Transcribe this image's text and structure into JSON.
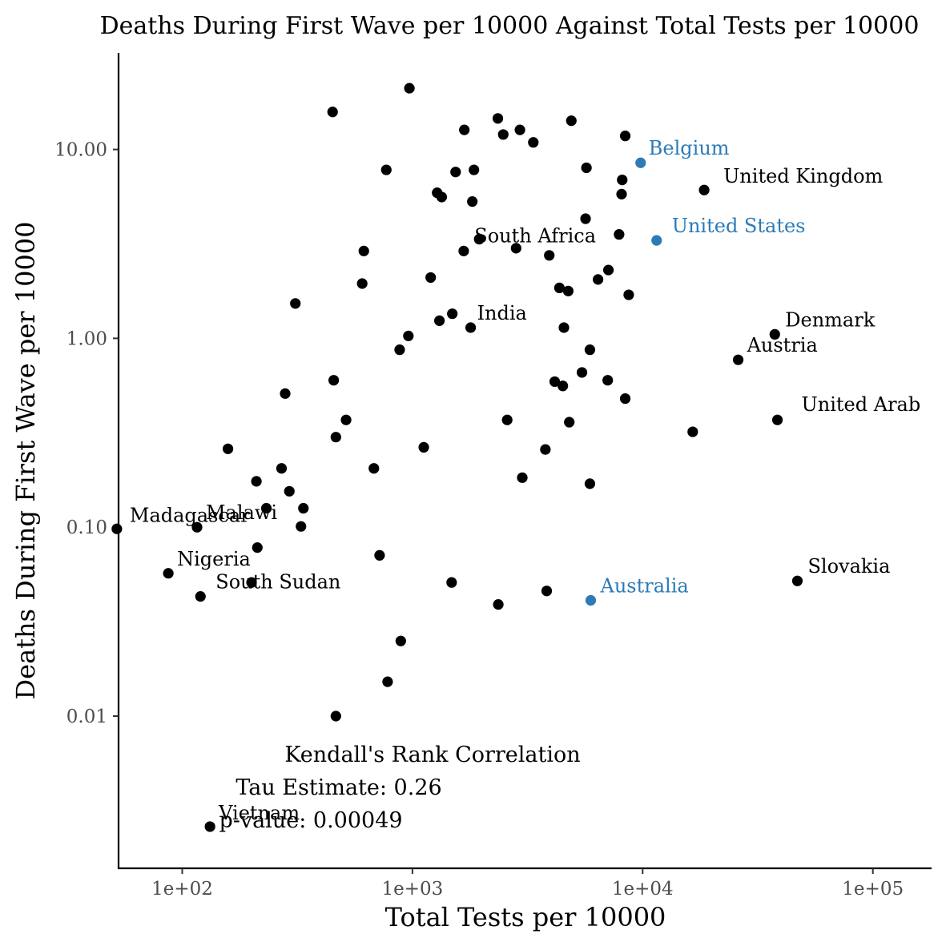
{
  "chart_data": {
    "type": "scatter",
    "title": "Deaths During First Wave per 10000 Against Total Tests per 10000",
    "xlabel": "Total Tests per 10000",
    "ylabel": "Deaths During First Wave per 10000",
    "x_scale": "log10",
    "y_scale": "log10",
    "xlim": [
      52,
      190000
    ],
    "ylim": [
      0.0018,
      30
    ],
    "x_ticks": [
      {
        "value": 100,
        "label": "1e+02"
      },
      {
        "value": 1000,
        "label": "1e+03"
      },
      {
        "value": 10000,
        "label": "1e+04"
      },
      {
        "value": 100000,
        "label": "1e+05"
      }
    ],
    "y_ticks": [
      {
        "value": 0.01,
        "label": "0.01"
      },
      {
        "value": 0.1,
        "label": "0.10"
      },
      {
        "value": 1,
        "label": "1.00"
      },
      {
        "value": 10,
        "label": "10.00"
      }
    ],
    "grid": false,
    "colors": {
      "default": "#000000",
      "highlight": "#2c7bb6",
      "tick": "#4d4d4d"
    },
    "annotations": [
      "Kendall's Rank Correlation",
      "Tau Estimate: 0.26",
      "p-value: 0.00049"
    ],
    "points": [
      {
        "x": 9800,
        "y": 8.5,
        "label": "Belgium",
        "highlight": true
      },
      {
        "x": 18500,
        "y": 6.1,
        "label": "United Kingdom"
      },
      {
        "x": 11500,
        "y": 3.3,
        "label": "United States",
        "highlight": true
      },
      {
        "x": 1950,
        "y": 3.35,
        "label": "South Africa"
      },
      {
        "x": 1790,
        "y": 1.14,
        "label": "India"
      },
      {
        "x": 37500,
        "y": 1.05,
        "label": "Denmark"
      },
      {
        "x": 26000,
        "y": 0.77,
        "label": "Austria"
      },
      {
        "x": 38500,
        "y": 0.37,
        "label": "United Arab"
      },
      {
        "x": 52,
        "y": 0.098,
        "label": "Madagascar"
      },
      {
        "x": 116,
        "y": 0.1,
        "label": "Malawi"
      },
      {
        "x": 87,
        "y": 0.057,
        "label": "Nigeria"
      },
      {
        "x": 120,
        "y": 0.043,
        "label": "South Sudan"
      },
      {
        "x": 5950,
        "y": 0.041,
        "label": "Australia",
        "highlight": true
      },
      {
        "x": 47000,
        "y": 0.052,
        "label": "Slovakia"
      },
      {
        "x": 132,
        "y": 0.0026,
        "label": "Vietnam"
      },
      {
        "x": 450,
        "y": 15.8
      },
      {
        "x": 970,
        "y": 21.1
      },
      {
        "x": 2350,
        "y": 14.6
      },
      {
        "x": 4900,
        "y": 14.2
      },
      {
        "x": 1680,
        "y": 12.7
      },
      {
        "x": 2480,
        "y": 12.0
      },
      {
        "x": 2930,
        "y": 12.7
      },
      {
        "x": 3350,
        "y": 10.9
      },
      {
        "x": 8400,
        "y": 11.8
      },
      {
        "x": 770,
        "y": 7.8
      },
      {
        "x": 1540,
        "y": 7.6
      },
      {
        "x": 1850,
        "y": 7.8
      },
      {
        "x": 5700,
        "y": 8.0
      },
      {
        "x": 8150,
        "y": 6.9
      },
      {
        "x": 1280,
        "y": 5.9
      },
      {
        "x": 1340,
        "y": 5.6
      },
      {
        "x": 1820,
        "y": 5.3
      },
      {
        "x": 8100,
        "y": 5.8
      },
      {
        "x": 5650,
        "y": 4.3
      },
      {
        "x": 7900,
        "y": 3.55
      },
      {
        "x": 615,
        "y": 2.9
      },
      {
        "x": 1670,
        "y": 2.9
      },
      {
        "x": 2820,
        "y": 3.0
      },
      {
        "x": 3930,
        "y": 2.75
      },
      {
        "x": 7100,
        "y": 2.3
      },
      {
        "x": 1200,
        "y": 2.1
      },
      {
        "x": 605,
        "y": 1.95
      },
      {
        "x": 6400,
        "y": 2.05
      },
      {
        "x": 4350,
        "y": 1.85
      },
      {
        "x": 4750,
        "y": 1.78
      },
      {
        "x": 8700,
        "y": 1.7
      },
      {
        "x": 310,
        "y": 1.53
      },
      {
        "x": 1490,
        "y": 1.35
      },
      {
        "x": 1310,
        "y": 1.24
      },
      {
        "x": 4550,
        "y": 1.14
      },
      {
        "x": 960,
        "y": 1.03
      },
      {
        "x": 880,
        "y": 0.87
      },
      {
        "x": 5900,
        "y": 0.87
      },
      {
        "x": 5450,
        "y": 0.66
      },
      {
        "x": 455,
        "y": 0.6
      },
      {
        "x": 4150,
        "y": 0.59
      },
      {
        "x": 4500,
        "y": 0.56
      },
      {
        "x": 7050,
        "y": 0.6
      },
      {
        "x": 280,
        "y": 0.51
      },
      {
        "x": 8400,
        "y": 0.48
      },
      {
        "x": 515,
        "y": 0.37
      },
      {
        "x": 2580,
        "y": 0.37
      },
      {
        "x": 4800,
        "y": 0.36
      },
      {
        "x": 16500,
        "y": 0.32
      },
      {
        "x": 465,
        "y": 0.3
      },
      {
        "x": 158,
        "y": 0.26
      },
      {
        "x": 1120,
        "y": 0.265
      },
      {
        "x": 3780,
        "y": 0.258
      },
      {
        "x": 270,
        "y": 0.205
      },
      {
        "x": 680,
        "y": 0.205
      },
      {
        "x": 210,
        "y": 0.175
      },
      {
        "x": 3000,
        "y": 0.183
      },
      {
        "x": 5900,
        "y": 0.17
      },
      {
        "x": 292,
        "y": 0.155
      },
      {
        "x": 232,
        "y": 0.126
      },
      {
        "x": 336,
        "y": 0.126
      },
      {
        "x": 328,
        "y": 0.101
      },
      {
        "x": 212,
        "y": 0.078
      },
      {
        "x": 720,
        "y": 0.071
      },
      {
        "x": 200,
        "y": 0.051
      },
      {
        "x": 1480,
        "y": 0.051
      },
      {
        "x": 3830,
        "y": 0.046
      },
      {
        "x": 2360,
        "y": 0.039
      },
      {
        "x": 890,
        "y": 0.025
      },
      {
        "x": 780,
        "y": 0.0152
      },
      {
        "x": 465,
        "y": 0.01
      }
    ]
  }
}
